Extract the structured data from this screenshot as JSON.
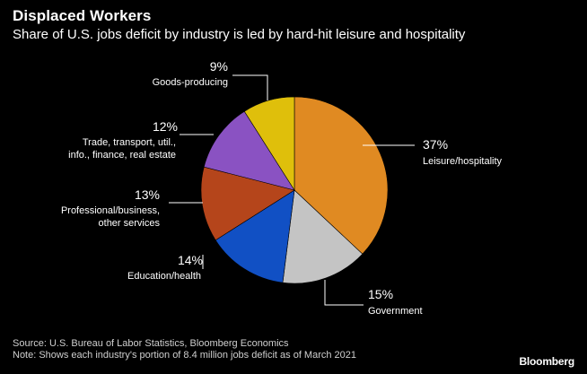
{
  "header": {
    "title": "Displaced Workers",
    "subtitle": "Share of U.S. jobs deficit by industry is led by hard-hit leisure and hospitality"
  },
  "chart_data": {
    "type": "pie",
    "title": "Displaced Workers",
    "subtitle": "Share of U.S. jobs deficit by industry is led by hard-hit leisure and hospitality",
    "slices": [
      {
        "label_lines": [
          "Leisure/hospitality"
        ],
        "value": 37,
        "value_label": "37%",
        "color": "#e08a22"
      },
      {
        "label_lines": [
          "Government"
        ],
        "value": 15,
        "value_label": "15%",
        "color": "#c4c4c4"
      },
      {
        "label_lines": [
          "Education/health"
        ],
        "value": 14,
        "value_label": "14%",
        "color": "#1150c4"
      },
      {
        "label_lines": [
          "Professional/business,",
          "other services"
        ],
        "value": 13,
        "value_label": "13%",
        "color": "#b5451b"
      },
      {
        "label_lines": [
          "Trade, transport, util.,",
          "info., finance, real estate"
        ],
        "value": 12,
        "value_label": "12%",
        "color": "#8a52c2"
      },
      {
        "label_lines": [
          "Goods-producing"
        ],
        "value": 9,
        "value_label": "9%",
        "color": "#dfbf0b"
      }
    ]
  },
  "footer": {
    "source": "Source: U.S. Bureau of Labor Statistics, Bloomberg Economics",
    "note": "Note: Shows each industry's portion of 8.4 million jobs deficit as of March 2021",
    "brand": "Bloomberg"
  }
}
